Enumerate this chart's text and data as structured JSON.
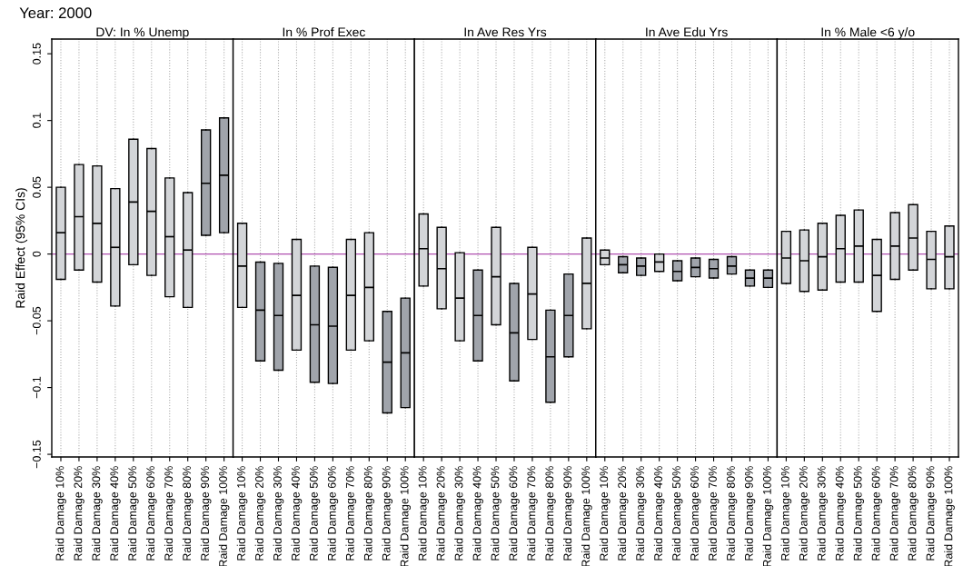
{
  "chart_data": [
    {
      "type": "box",
      "title": "DV: In % Unemp",
      "ylabel": "Raid Effect (95% CIs)",
      "annotations": [
        "Year: 2000"
      ],
      "grid": "x",
      "categories": [
        "Raid Damage 10%",
        "Raid Damage 20%",
        "Raid Damage 30%",
        "Raid Damage 40%",
        "Raid Damage 50%",
        "Raid Damage 60%",
        "Raid Damage 70%",
        "Raid Damage 80%",
        "Raid Damage 90%",
        "Raid Damage 100%"
      ],
      "ylim": [
        -0.152,
        0.161
      ],
      "yticks": [
        {
          "value": -0.15,
          "label": "−0.15"
        },
        {
          "value": -0.1,
          "label": "−0.1"
        },
        {
          "value": -0.05,
          "label": "−0.05"
        },
        0,
        0.05,
        0.1,
        0.15
      ],
      "ref_lines": [
        {
          "axis": "y",
          "value": 0,
          "color": "#b050b0"
        }
      ],
      "colors": [
        "#d3d5d8",
        "#d3d5d8",
        "#d3d5d8",
        "#d3d5d8",
        "#d3d5d8",
        "#d3d5d8",
        "#d3d5d8",
        "#d3d5d8",
        "#a0a4ab",
        "#a0a4ab"
      ],
      "boxes": [
        {
          "low": -0.019,
          "q1": -0.019,
          "median": 0.016,
          "q3": 0.05,
          "high": 0.05
        },
        {
          "low": -0.012,
          "q1": -0.012,
          "median": 0.028,
          "q3": 0.067,
          "high": 0.067
        },
        {
          "low": -0.021,
          "q1": -0.021,
          "median": 0.023,
          "q3": 0.066,
          "high": 0.066
        },
        {
          "low": -0.039,
          "q1": -0.039,
          "median": 0.005,
          "q3": 0.049,
          "high": 0.049
        },
        {
          "low": -0.008,
          "q1": -0.008,
          "median": 0.039,
          "q3": 0.086,
          "high": 0.086
        },
        {
          "low": -0.016,
          "q1": -0.016,
          "median": 0.032,
          "q3": 0.079,
          "high": 0.079
        },
        {
          "low": -0.032,
          "q1": -0.032,
          "median": 0.013,
          "q3": 0.057,
          "high": 0.057
        },
        {
          "low": -0.04,
          "q1": -0.04,
          "median": 0.003,
          "q3": 0.046,
          "high": 0.046
        },
        {
          "low": 0.014,
          "q1": 0.014,
          "median": 0.053,
          "q3": 0.093,
          "high": 0.093
        },
        {
          "low": 0.016,
          "q1": 0.016,
          "median": 0.059,
          "q3": 0.102,
          "high": 0.102
        }
      ]
    },
    {
      "type": "box",
      "title": "In % Prof Exec",
      "grid": "x",
      "tick_labels": "x",
      "categories": [
        "Raid Damage 10%",
        "Raid Damage 20%",
        "Raid Damage 30%",
        "Raid Damage 40%",
        "Raid Damage 50%",
        "Raid Damage 60%",
        "Raid Damage 70%",
        "Raid Damage 80%",
        "Raid Damage 90%",
        "Raid Damage 100%"
      ],
      "ylim": [
        -0.152,
        0.161
      ],
      "ref_lines": [
        {
          "axis": "y",
          "value": 0,
          "color": "#b050b0"
        }
      ],
      "colors": [
        "#d3d5d8",
        "#a0a4ab",
        "#a0a4ab",
        "#d3d5d8",
        "#a0a4ab",
        "#a0a4ab",
        "#d3d5d8",
        "#d3d5d8",
        "#a0a4ab",
        "#a0a4ab"
      ],
      "boxes": [
        {
          "low": -0.04,
          "q1": -0.04,
          "median": -0.009,
          "q3": 0.023,
          "high": 0.023
        },
        {
          "low": -0.08,
          "q1": -0.08,
          "median": -0.042,
          "q3": -0.006,
          "high": -0.006
        },
        {
          "low": -0.087,
          "q1": -0.087,
          "median": -0.046,
          "q3": -0.007,
          "high": -0.007
        },
        {
          "low": -0.072,
          "q1": -0.072,
          "median": -0.031,
          "q3": 0.011,
          "high": 0.011
        },
        {
          "low": -0.096,
          "q1": -0.096,
          "median": -0.053,
          "q3": -0.009,
          "high": -0.009
        },
        {
          "low": -0.097,
          "q1": -0.097,
          "median": -0.054,
          "q3": -0.01,
          "high": -0.01
        },
        {
          "low": -0.072,
          "q1": -0.072,
          "median": -0.031,
          "q3": 0.011,
          "high": 0.011
        },
        {
          "low": -0.065,
          "q1": -0.065,
          "median": -0.025,
          "q3": 0.016,
          "high": 0.016
        },
        {
          "low": -0.119,
          "q1": -0.119,
          "median": -0.081,
          "q3": -0.043,
          "high": -0.043
        },
        {
          "low": -0.115,
          "q1": -0.115,
          "median": -0.074,
          "q3": -0.033,
          "high": -0.033
        }
      ]
    },
    {
      "type": "box",
      "title": "In Ave Res Yrs",
      "grid": "x",
      "tick_labels": "x",
      "categories": [
        "Raid Damage 10%",
        "Raid Damage 20%",
        "Raid Damage 30%",
        "Raid Damage 40%",
        "Raid Damage 50%",
        "Raid Damage 60%",
        "Raid Damage 70%",
        "Raid Damage 80%",
        "Raid Damage 90%",
        "Raid Damage 100%"
      ],
      "ylim": [
        -0.152,
        0.161
      ],
      "ref_lines": [
        {
          "axis": "y",
          "value": 0,
          "color": "#b050b0"
        }
      ],
      "colors": [
        "#d3d5d8",
        "#d3d5d8",
        "#d3d5d8",
        "#a0a4ab",
        "#d3d5d8",
        "#a0a4ab",
        "#d3d5d8",
        "#a0a4ab",
        "#a0a4ab",
        "#d3d5d8"
      ],
      "boxes": [
        {
          "low": -0.024,
          "q1": -0.024,
          "median": 0.004,
          "q3": 0.03,
          "high": 0.03
        },
        {
          "low": -0.041,
          "q1": -0.041,
          "median": -0.011,
          "q3": 0.02,
          "high": 0.02
        },
        {
          "low": -0.065,
          "q1": -0.065,
          "median": -0.033,
          "q3": 0.001,
          "high": 0.001
        },
        {
          "low": -0.08,
          "q1": -0.08,
          "median": -0.046,
          "q3": -0.012,
          "high": -0.012
        },
        {
          "low": -0.053,
          "q1": -0.053,
          "median": -0.017,
          "q3": 0.02,
          "high": 0.02
        },
        {
          "low": -0.095,
          "q1": -0.095,
          "median": -0.059,
          "q3": -0.022,
          "high": -0.022
        },
        {
          "low": -0.064,
          "q1": -0.064,
          "median": -0.03,
          "q3": 0.005,
          "high": 0.005
        },
        {
          "low": -0.111,
          "q1": -0.111,
          "median": -0.077,
          "q3": -0.042,
          "high": -0.042
        },
        {
          "low": -0.077,
          "q1": -0.077,
          "median": -0.046,
          "q3": -0.015,
          "high": -0.015
        },
        {
          "low": -0.056,
          "q1": -0.056,
          "median": -0.022,
          "q3": 0.012,
          "high": 0.012
        }
      ]
    },
    {
      "type": "box",
      "title": "In Ave Edu Yrs",
      "grid": "x",
      "tick_labels": "x",
      "categories": [
        "Raid Damage 10%",
        "Raid Damage 20%",
        "Raid Damage 30%",
        "Raid Damage 40%",
        "Raid Damage 50%",
        "Raid Damage 60%",
        "Raid Damage 70%",
        "Raid Damage 80%",
        "Raid Damage 90%",
        "Raid Damage 100%"
      ],
      "ylim": [
        -0.152,
        0.161
      ],
      "ref_lines": [
        {
          "axis": "y",
          "value": 0,
          "color": "#b050b0"
        }
      ],
      "colors": [
        "#d3d5d8",
        "#a0a4ab",
        "#a0a4ab",
        "#d3d5d8",
        "#a0a4ab",
        "#a0a4ab",
        "#a0a4ab",
        "#a0a4ab",
        "#a0a4ab",
        "#a0a4ab"
      ],
      "boxes": [
        {
          "low": -0.008,
          "q1": -0.008,
          "median": -0.003,
          "q3": 0.003,
          "high": 0.003
        },
        {
          "low": -0.014,
          "q1": -0.014,
          "median": -0.008,
          "q3": -0.002,
          "high": -0.002
        },
        {
          "low": -0.016,
          "q1": -0.016,
          "median": -0.009,
          "q3": -0.003,
          "high": -0.003
        },
        {
          "low": -0.013,
          "q1": -0.013,
          "median": -0.006,
          "q3": 0.0,
          "high": 0.0
        },
        {
          "low": -0.02,
          "q1": -0.02,
          "median": -0.013,
          "q3": -0.005,
          "high": -0.005
        },
        {
          "low": -0.017,
          "q1": -0.017,
          "median": -0.01,
          "q3": -0.003,
          "high": -0.003
        },
        {
          "low": -0.018,
          "q1": -0.018,
          "median": -0.011,
          "q3": -0.004,
          "high": -0.004
        },
        {
          "low": -0.015,
          "q1": -0.015,
          "median": -0.009,
          "q3": -0.002,
          "high": -0.002
        },
        {
          "low": -0.024,
          "q1": -0.024,
          "median": -0.018,
          "q3": -0.012,
          "high": -0.012
        },
        {
          "low": -0.025,
          "q1": -0.025,
          "median": -0.018,
          "q3": -0.012,
          "high": -0.012
        }
      ]
    },
    {
      "type": "box",
      "title": "In % Male <6 y/o",
      "grid": "x",
      "tick_labels": "x",
      "categories": [
        "Raid Damage 10%",
        "Raid Damage 20%",
        "Raid Damage 30%",
        "Raid Damage 40%",
        "Raid Damage 50%",
        "Raid Damage 60%",
        "Raid Damage 70%",
        "Raid Damage 80%",
        "Raid Damage 90%",
        "Raid Damage 100%"
      ],
      "ylim": [
        -0.152,
        0.161
      ],
      "ref_lines": [
        {
          "axis": "y",
          "value": 0,
          "color": "#b050b0"
        }
      ],
      "colors": [
        "#d3d5d8",
        "#d3d5d8",
        "#d3d5d8",
        "#d3d5d8",
        "#d3d5d8",
        "#d3d5d8",
        "#d3d5d8",
        "#d3d5d8",
        "#d3d5d8",
        "#d3d5d8"
      ],
      "boxes": [
        {
          "low": -0.022,
          "q1": -0.022,
          "median": -0.003,
          "q3": 0.017,
          "high": 0.017
        },
        {
          "low": -0.028,
          "q1": -0.028,
          "median": -0.005,
          "q3": 0.018,
          "high": 0.018
        },
        {
          "low": -0.027,
          "q1": -0.027,
          "median": -0.002,
          "q3": 0.023,
          "high": 0.023
        },
        {
          "low": -0.021,
          "q1": -0.021,
          "median": 0.004,
          "q3": 0.029,
          "high": 0.029
        },
        {
          "low": -0.021,
          "q1": -0.021,
          "median": 0.006,
          "q3": 0.033,
          "high": 0.033
        },
        {
          "low": -0.043,
          "q1": -0.043,
          "median": -0.016,
          "q3": 0.011,
          "high": 0.011
        },
        {
          "low": -0.019,
          "q1": -0.019,
          "median": 0.006,
          "q3": 0.031,
          "high": 0.031
        },
        {
          "low": -0.012,
          "q1": -0.012,
          "median": 0.012,
          "q3": 0.037,
          "high": 0.037
        },
        {
          "low": -0.026,
          "q1": -0.026,
          "median": -0.004,
          "q3": 0.017,
          "high": 0.017
        },
        {
          "low": -0.026,
          "q1": -0.026,
          "median": -0.002,
          "q3": 0.021,
          "high": 0.021
        }
      ]
    }
  ]
}
